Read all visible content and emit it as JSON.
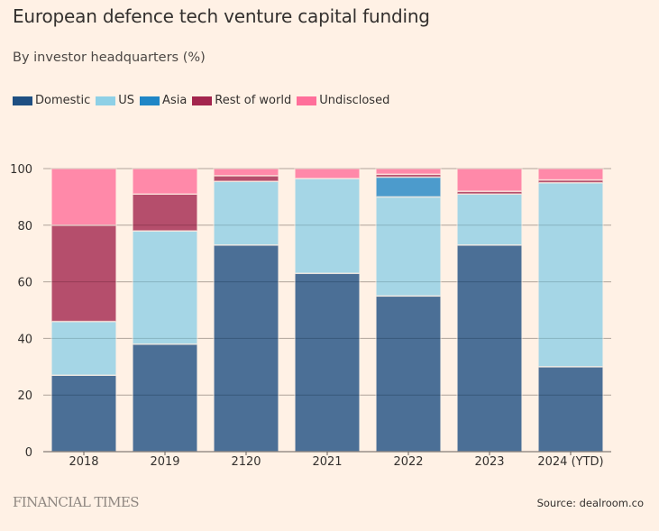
{
  "header": {
    "title": "European defence tech venture capital funding",
    "subtitle": "By investor headquarters (%)"
  },
  "footer": {
    "brand": "FINANCIAL TIMES",
    "source": "Source: dealroom.co"
  },
  "chart_data": {
    "type": "bar",
    "stacked": true,
    "title": "European defence tech venture capital funding",
    "subtitle": "By investor headquarters (%)",
    "xlabel": "",
    "ylabel": "",
    "ylim": [
      0,
      100
    ],
    "yticks": [
      0,
      20,
      40,
      60,
      80,
      100
    ],
    "grid": true,
    "legend_position": "top-left",
    "categories": [
      "2018",
      "2019",
      "2120",
      "2021",
      "2022",
      "2023",
      "2024 (YTD)"
    ],
    "series": [
      {
        "name": "Domestic",
        "color": "#1e4f82",
        "values": [
          27,
          38,
          73,
          63,
          55,
          73,
          30
        ]
      },
      {
        "name": "US",
        "color": "#8ed0e6",
        "values": [
          19,
          40,
          22.5,
          33.5,
          35,
          18,
          65
        ]
      },
      {
        "name": "Asia",
        "color": "#1f86c6",
        "values": [
          0,
          0,
          0,
          0,
          7,
          0,
          0
        ]
      },
      {
        "name": "Rest of world",
        "color": "#a3254d",
        "values": [
          34,
          13,
          2,
          0,
          1,
          1,
          1
        ]
      },
      {
        "name": "Undisclosed",
        "color": "#ff6f9a",
        "values": [
          20,
          9,
          2.5,
          3.5,
          2,
          8,
          4
        ]
      }
    ]
  }
}
